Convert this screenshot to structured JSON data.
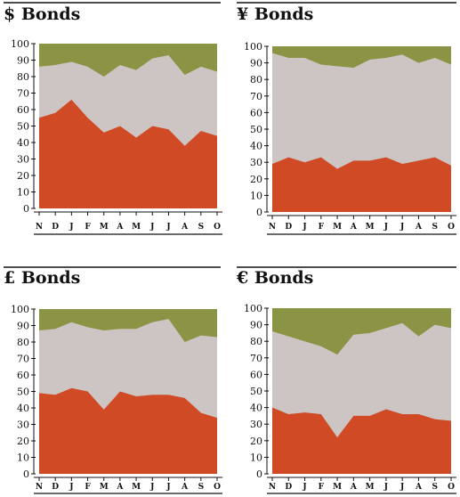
{
  "colors": {
    "low": "#cf4a25",
    "mid": "#cdc5c3",
    "high": "#8a9444",
    "rule": "#111111"
  },
  "chart_data": [
    {
      "type": "area",
      "title": "$ Bonds",
      "categories": [
        "N",
        "D",
        "J",
        "F",
        "M",
        "A",
        "M",
        "J",
        "J",
        "A",
        "S",
        "O"
      ],
      "ylim": [
        0,
        100
      ],
      "yticks": [
        0,
        10,
        20,
        30,
        40,
        50,
        60,
        70,
        80,
        90,
        100
      ],
      "boundaries": [
        [
          55,
          58,
          66,
          55,
          46,
          50,
          43,
          50,
          48,
          38,
          47,
          44
        ],
        [
          86,
          87,
          89,
          86,
          80,
          87,
          84,
          91,
          93,
          81,
          86,
          83
        ]
      ]
    },
    {
      "type": "area",
      "title": "¥ Bonds",
      "categories": [
        "N",
        "D",
        "J",
        "F",
        "M",
        "A",
        "M",
        "J",
        "J",
        "A",
        "S",
        "O"
      ],
      "ylim": [
        0,
        100
      ],
      "yticks": [
        0,
        10,
        20,
        30,
        40,
        50,
        60,
        70,
        80,
        90,
        100
      ],
      "boundaries": [
        [
          29,
          33,
          30,
          33,
          26,
          31,
          31,
          33,
          29,
          31,
          33,
          28
        ],
        [
          96,
          93,
          93,
          89,
          88,
          87,
          92,
          93,
          95,
          90,
          93,
          89
        ]
      ]
    },
    {
      "type": "area",
      "title": "£ Bonds",
      "categories": [
        "N",
        "D",
        "J",
        "F",
        "M",
        "A",
        "M",
        "J",
        "J",
        "A",
        "S",
        "O"
      ],
      "ylim": [
        0,
        100
      ],
      "yticks": [
        0,
        10,
        20,
        30,
        40,
        50,
        60,
        70,
        80,
        90,
        100
      ],
      "boundaries": [
        [
          49,
          48,
          52,
          50,
          39,
          50,
          47,
          48,
          48,
          46,
          37,
          34
        ],
        [
          87,
          88,
          92,
          89,
          87,
          88,
          88,
          92,
          94,
          80,
          84,
          83
        ]
      ]
    },
    {
      "type": "area",
      "title": "€ Bonds",
      "categories": [
        "N",
        "D",
        "J",
        "F",
        "M",
        "A",
        "M",
        "J",
        "J",
        "A",
        "S",
        "O"
      ],
      "ylim": [
        0,
        100
      ],
      "yticks": [
        0,
        10,
        20,
        30,
        40,
        50,
        60,
        70,
        80,
        90,
        100
      ],
      "boundaries": [
        [
          40,
          36,
          37,
          36,
          22,
          35,
          35,
          39,
          36,
          36,
          33,
          32
        ],
        [
          86,
          83,
          80,
          77,
          72,
          84,
          85,
          88,
          91,
          83,
          90,
          88
        ]
      ]
    }
  ]
}
